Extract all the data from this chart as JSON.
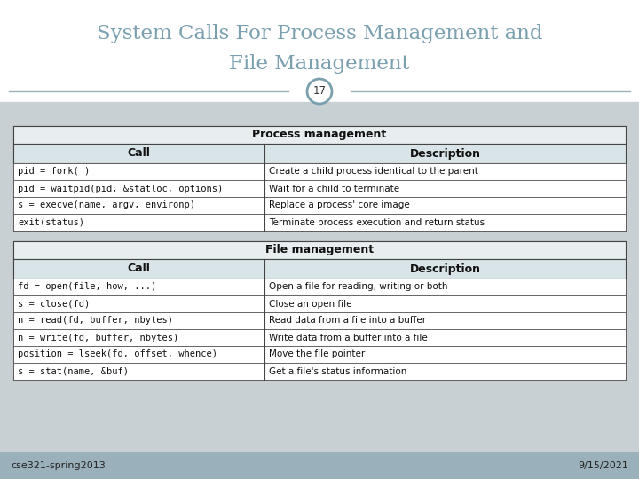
{
  "title_line1": "System Calls For Process Management and",
  "title_line2": "File Management",
  "slide_number": "17",
  "bg_color": "#c8d0d4",
  "title_bg": "#ffffff",
  "title_color": "#7aa0b0",
  "divider_color": "#9ab0ba",
  "circle_color": "#7aa0b0",
  "table_outer_bg": "#c8d0d4",
  "table_bg": "#ffffff",
  "table_title_bg": "#e8eef0",
  "table_header_bg": "#d8e4e8",
  "table_border": "#444444",
  "footer_bg": "#9ab0ba",
  "footer_text": "#222222",
  "process_table_title": "Process management",
  "process_headers": [
    "Call",
    "Description"
  ],
  "process_rows": [
    [
      "pid = fork( )",
      "Create a child process identical to the parent"
    ],
    [
      "pid = waitpid(pid, &statloc, options)",
      "Wait for a child to terminate"
    ],
    [
      "s = execve(name, argv, environp)",
      "Replace a process' core image"
    ],
    [
      "exit(status)",
      "Terminate process execution and return status"
    ]
  ],
  "file_table_title": "File management",
  "file_headers": [
    "Call",
    "Description"
  ],
  "file_rows": [
    [
      "fd = open(file, how, ...)",
      "Open a file for reading, writing or both"
    ],
    [
      "s = close(fd)",
      "Close an open file"
    ],
    [
      "n = read(fd, buffer, nbytes)",
      "Read data from a file into a buffer"
    ],
    [
      "n = write(fd, buffer, nbytes)",
      "Write data from a buffer into a file"
    ],
    [
      "position = lseek(fd, offset, whence)",
      "Move the file pointer"
    ],
    [
      "s = stat(name, &buf)",
      "Get a file's status information"
    ]
  ],
  "footer_left": "cse321-spring2013",
  "footer_right": "9/15/2021",
  "col_split": 0.41
}
